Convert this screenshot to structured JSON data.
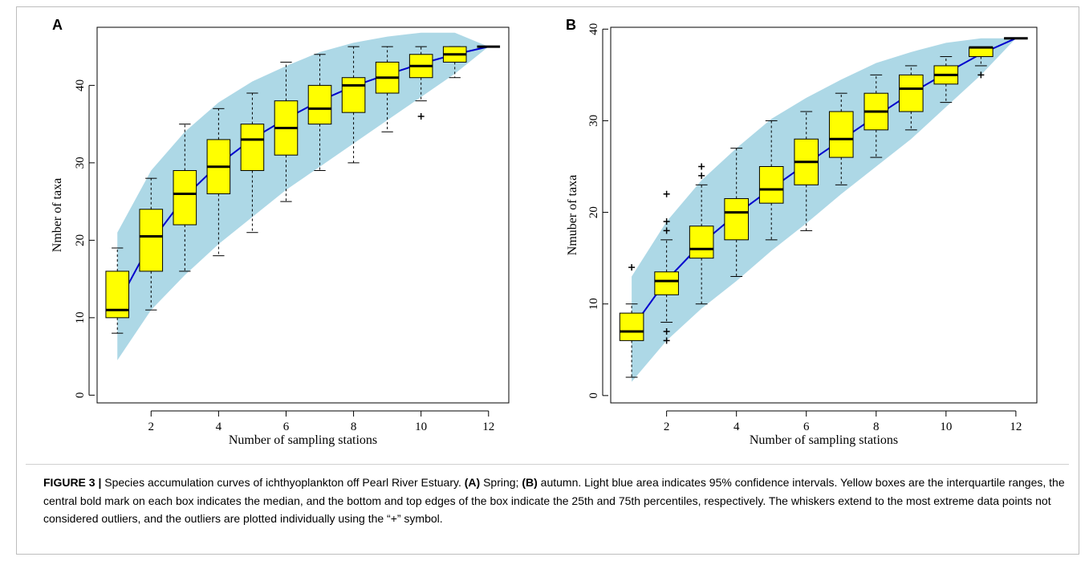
{
  "panel_labels": [
    "A",
    "B"
  ],
  "caption": {
    "figure_label": "FIGURE 3 |",
    "part1": " Species accumulation curves of ichthyoplankton off Pearl River Estuary. ",
    "label_a": "(A)",
    "part2": " Spring; ",
    "label_b": "(B)",
    "part3": " autumn. Light blue area indicates 95% confidence intervals. Yellow boxes are the interquartile ranges, the central bold mark on each box indicates the median, and the bottom and top edges of the box indicate the 25th and 75th percentiles, respectively. The whiskers extend to the most extreme data points not considered outliers, and the outliers are plotted individually using the “+” symbol."
  },
  "colors": {
    "ci_band": "#add8e6",
    "box_fill": "#ffff00",
    "curve": "#0000cd",
    "outlier": "#000000"
  },
  "chart_data": [
    {
      "panel": "A",
      "type": "boxplot",
      "xlabel": "Number of sampling stations",
      "ylabel": "Nmber of taxa",
      "xlim": [
        0.4,
        12.6
      ],
      "ylim": [
        -1.0,
        47.5
      ],
      "x_ticks": [
        2,
        4,
        6,
        8,
        10,
        12
      ],
      "y_ticks": [
        0,
        10,
        20,
        30,
        40
      ],
      "ci_band": {
        "x": [
          1,
          2,
          3,
          4,
          5,
          6,
          7,
          8,
          9,
          10,
          11,
          12
        ],
        "lower": [
          4.5,
          11.0,
          15.5,
          19.5,
          23.0,
          26.5,
          29.5,
          32.5,
          35.5,
          38.5,
          41.5,
          45
        ],
        "upper": [
          21.0,
          29.0,
          34.0,
          37.8,
          40.5,
          42.5,
          44.3,
          45.5,
          46.3,
          46.8,
          46.8,
          45
        ]
      },
      "curve": {
        "x": [
          1,
          2,
          3,
          4,
          5,
          6,
          7,
          8,
          9,
          10,
          11,
          12
        ],
        "y": [
          11.7,
          19.8,
          25.6,
          29.8,
          33.1,
          35.7,
          38.0,
          39.9,
          41.4,
          42.8,
          44.0,
          45
        ]
      },
      "boxes": [
        {
          "x": 1,
          "whisker_low": 8,
          "q1": 10,
          "median": 11,
          "q3": 16,
          "whisker_high": 19,
          "outliers": []
        },
        {
          "x": 2,
          "whisker_low": 11,
          "q1": 16,
          "median": 20.5,
          "q3": 24,
          "whisker_high": 28,
          "outliers": []
        },
        {
          "x": 3,
          "whisker_low": 16,
          "q1": 22,
          "median": 26,
          "q3": 29,
          "whisker_high": 35,
          "outliers": []
        },
        {
          "x": 4,
          "whisker_low": 18,
          "q1": 26,
          "median": 29.5,
          "q3": 33,
          "whisker_high": 37,
          "outliers": []
        },
        {
          "x": 5,
          "whisker_low": 21,
          "q1": 29,
          "median": 33,
          "q3": 35,
          "whisker_high": 39,
          "outliers": []
        },
        {
          "x": 6,
          "whisker_low": 25,
          "q1": 31,
          "median": 34.5,
          "q3": 38,
          "whisker_high": 43,
          "outliers": []
        },
        {
          "x": 7,
          "whisker_low": 29,
          "q1": 35,
          "median": 37,
          "q3": 40,
          "whisker_high": 44,
          "outliers": []
        },
        {
          "x": 8,
          "whisker_low": 30,
          "q1": 36.5,
          "median": 40,
          "q3": 41,
          "whisker_high": 45,
          "outliers": []
        },
        {
          "x": 9,
          "whisker_low": 34,
          "q1": 39,
          "median": 41,
          "q3": 43,
          "whisker_high": 45,
          "outliers": []
        },
        {
          "x": 10,
          "whisker_low": 38,
          "q1": 41,
          "median": 42.5,
          "q3": 44,
          "whisker_high": 45,
          "outliers": [
            36
          ]
        },
        {
          "x": 11,
          "whisker_low": 41,
          "q1": 43,
          "median": 44,
          "q3": 45,
          "whisker_high": 45,
          "outliers": []
        },
        {
          "x": 12,
          "whisker_low": 45,
          "q1": 45,
          "median": 45,
          "q3": 45,
          "whisker_high": 45,
          "outliers": []
        }
      ]
    },
    {
      "panel": "B",
      "type": "boxplot",
      "xlabel": "Number of sampling stations",
      "ylabel": "Nmuber of taxa",
      "xlim": [
        0.4,
        12.6
      ],
      "ylim": [
        -0.8,
        40.2
      ],
      "x_ticks": [
        2,
        4,
        6,
        8,
        10,
        12
      ],
      "y_ticks": [
        0,
        10,
        20,
        30,
        40
      ],
      "ci_band": {
        "x": [
          1,
          2,
          3,
          4,
          5,
          6,
          7,
          8,
          9,
          10,
          11,
          12
        ],
        "lower": [
          1.5,
          6.0,
          9.5,
          12.5,
          15.8,
          18.8,
          22.0,
          25.0,
          28.0,
          31.5,
          35.0,
          39
        ],
        "upper": [
          13.0,
          19.0,
          23.5,
          27.0,
          30.2,
          32.5,
          34.5,
          36.3,
          37.5,
          38.5,
          39.0,
          39
        ]
      },
      "curve": {
        "x": [
          1,
          2,
          3,
          4,
          5,
          6,
          7,
          8,
          9,
          10,
          11,
          12
        ],
        "y": [
          7.3,
          12.6,
          16.6,
          19.8,
          22.6,
          25.3,
          27.9,
          30.5,
          33.0,
          35.2,
          37.3,
          39
        ]
      },
      "boxes": [
        {
          "x": 1,
          "whisker_low": 2,
          "q1": 6,
          "median": 7,
          "q3": 9,
          "whisker_high": 10,
          "outliers": [
            14
          ]
        },
        {
          "x": 2,
          "whisker_low": 8,
          "q1": 11,
          "median": 12.5,
          "q3": 13.5,
          "whisker_high": 17,
          "outliers": [
            6,
            7,
            18,
            19,
            22
          ]
        },
        {
          "x": 3,
          "whisker_low": 10,
          "q1": 15,
          "median": 16,
          "q3": 18.5,
          "whisker_high": 23,
          "outliers": [
            24,
            25
          ]
        },
        {
          "x": 4,
          "whisker_low": 13,
          "q1": 17,
          "median": 20,
          "q3": 21.5,
          "whisker_high": 27,
          "outliers": []
        },
        {
          "x": 5,
          "whisker_low": 17,
          "q1": 21,
          "median": 22.5,
          "q3": 25,
          "whisker_high": 30,
          "outliers": []
        },
        {
          "x": 6,
          "whisker_low": 18,
          "q1": 23,
          "median": 25.5,
          "q3": 28,
          "whisker_high": 31,
          "outliers": []
        },
        {
          "x": 7,
          "whisker_low": 23,
          "q1": 26,
          "median": 28,
          "q3": 31,
          "whisker_high": 33,
          "outliers": []
        },
        {
          "x": 8,
          "whisker_low": 26,
          "q1": 29,
          "median": 31,
          "q3": 33,
          "whisker_high": 35,
          "outliers": []
        },
        {
          "x": 9,
          "whisker_low": 29,
          "q1": 31,
          "median": 33.5,
          "q3": 35,
          "whisker_high": 36,
          "outliers": []
        },
        {
          "x": 10,
          "whisker_low": 32,
          "q1": 34,
          "median": 35,
          "q3": 36,
          "whisker_high": 37,
          "outliers": []
        },
        {
          "x": 11,
          "whisker_low": 36,
          "q1": 37,
          "median": 38,
          "q3": 38,
          "whisker_high": 38,
          "outliers": [
            35
          ]
        },
        {
          "x": 12,
          "whisker_low": 39,
          "q1": 39,
          "median": 39,
          "q3": 39,
          "whisker_high": 39,
          "outliers": []
        }
      ]
    }
  ]
}
